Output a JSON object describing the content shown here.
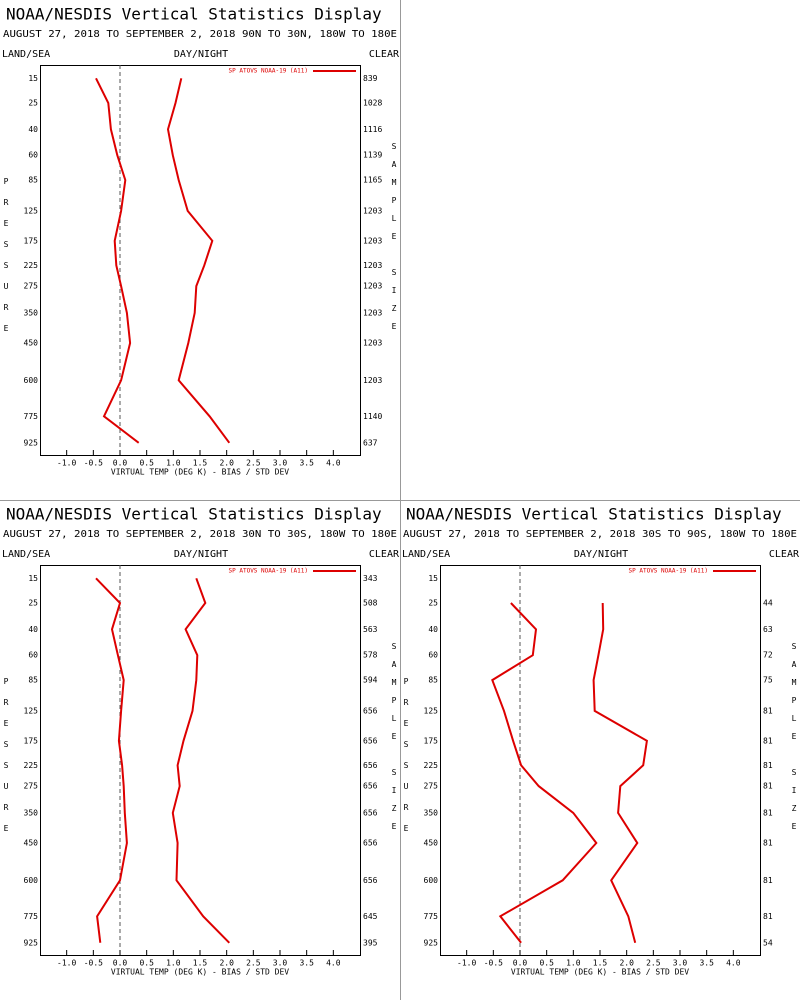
{
  "chart_data": [
    {
      "type": "line",
      "title": "NOAA/NESDIS Vertical Statistics Display",
      "subtitle": "AUGUST 27, 2018 TO SEPTEMBER 2, 2018  90N TO 30N, 180W TO 180E",
      "left_header": "LAND/SEA",
      "center_header": "DAY/NIGHT",
      "right_header": "CLEAR",
      "xlabel": "VIRTUAL TEMP (DEG K) - BIAS / STD DEV",
      "ylabel": "PRESSURE",
      "y2label": "SAMPLE SIZE",
      "xlim": [
        -1.5,
        4.5
      ],
      "xticks": [
        {
          "value": -1,
          "label": "-1.0"
        },
        -0.5,
        {
          "value": 0,
          "label": "0.0"
        },
        0.5,
        {
          "value": 1,
          "label": "1.0"
        },
        1.5,
        {
          "value": 2,
          "label": "2.0"
        },
        2.5,
        {
          "value": 3,
          "label": "3.0"
        },
        3.5,
        {
          "value": 4,
          "label": "4.0"
        }
      ],
      "ylim": [
        11,
        1000
      ],
      "yticks": [
        15,
        25,
        40,
        60,
        85,
        125,
        175,
        225,
        275,
        350,
        450,
        600,
        775,
        925
      ],
      "sample_size": [
        839,
        1028,
        1116,
        1139,
        1165,
        1203,
        1203,
        1203,
        1203,
        1203,
        1203,
        1203,
        1140,
        637
      ],
      "series": [
        {
          "name": "SP ATOVS NOAA-19 (A11)",
          "color": "#dd0000",
          "values": [
            -0.45,
            -0.22,
            -0.17,
            -0.05,
            0.1,
            0.02,
            -0.1,
            -0.07,
            0.02,
            0.13,
            0.19,
            0.02,
            -0.3,
            0.35
          ],
          "std_dev": [
            1.15,
            1.04,
            0.9,
            0.99,
            1.1,
            1.27,
            1.73,
            1.58,
            1.43,
            1.4,
            1.28,
            1.1,
            1.68,
            2.05
          ]
        }
      ]
    },
    {
      "type": "line",
      "title": "NOAA/NESDIS Vertical Statistics Display",
      "subtitle": "AUGUST 27, 2018 TO SEPTEMBER 2, 2018  30N TO 30S, 180W TO 180E",
      "left_header": "LAND/SEA",
      "center_header": "DAY/NIGHT",
      "right_header": "CLEAR",
      "xlabel": "VIRTUAL TEMP (DEG K) - BIAS / STD DEV",
      "ylabel": "PRESSURE",
      "y2label": "SAMPLE SIZE",
      "xlim": [
        -1.5,
        4.5
      ],
      "xticks": [
        {
          "value": -1,
          "label": "-1.0"
        },
        -0.5,
        {
          "value": 0,
          "label": "0.0"
        },
        0.5,
        {
          "value": 1,
          "label": "1.0"
        },
        1.5,
        {
          "value": 2,
          "label": "2.0"
        },
        2.5,
        {
          "value": 3,
          "label": "3.0"
        },
        3.5,
        {
          "value": 4,
          "label": "4.0"
        }
      ],
      "ylim": [
        11,
        1000
      ],
      "yticks": [
        15,
        25,
        40,
        60,
        85,
        125,
        175,
        225,
        275,
        350,
        450,
        600,
        775,
        925
      ],
      "sample_size": [
        343,
        508,
        563,
        578,
        594,
        656,
        656,
        656,
        656,
        656,
        656,
        656,
        645,
        395
      ],
      "series": [
        {
          "name": "SP ATOVS NOAA-19 (A11)",
          "color": "#dd0000",
          "values": [
            -0.45,
            0,
            -0.15,
            -0.04,
            0.07,
            0.02,
            -0.02,
            0.04,
            0.07,
            0.09,
            0.13,
            0,
            -0.43,
            -0.37
          ],
          "std_dev": [
            1.43,
            1.6,
            1.23,
            1.45,
            1.43,
            1.36,
            1.19,
            1.08,
            1.12,
            0.99,
            1.08,
            1.06,
            1.56,
            2.05
          ]
        }
      ]
    },
    {
      "type": "line",
      "title": "NOAA/NESDIS Vertical Statistics Display",
      "subtitle": "AUGUST 27, 2018 TO SEPTEMBER 2, 2018  30S TO 90S, 180W TO 180E",
      "left_header": "LAND/SEA",
      "center_header": "DAY/NIGHT",
      "right_header": "CLEAR",
      "xlabel": "VIRTUAL TEMP (DEG K) - BIAS / STD DEV",
      "ylabel": "PRESSURE",
      "y2label": "SAMPLE SIZE",
      "xlim": [
        -1.5,
        4.5
      ],
      "xticks": [
        {
          "value": -1,
          "label": "-1.0"
        },
        -0.5,
        {
          "value": 0,
          "label": "0.0"
        },
        0.5,
        {
          "value": 1,
          "label": "1.0"
        },
        1.5,
        {
          "value": 2,
          "label": "2.0"
        },
        2.5,
        {
          "value": 3,
          "label": "3.0"
        },
        3.5,
        {
          "value": 4,
          "label": "4.0"
        }
      ],
      "ylim": [
        11,
        1000
      ],
      "yticks": [
        15,
        25,
        40,
        60,
        85,
        125,
        175,
        225,
        275,
        350,
        450,
        600,
        775,
        925
      ],
      "sample_size": [
        null,
        44,
        63,
        72,
        75,
        81,
        81,
        81,
        81,
        81,
        81,
        81,
        81,
        54
      ],
      "series": [
        {
          "name": "SP ATOVS NOAA-19 (A11)",
          "color": "#dd0000",
          "values": [
            null,
            -0.17,
            0.3,
            0.24,
            -0.52,
            -0.3,
            -0.13,
            0.02,
            0.35,
            1.0,
            1.43,
            0.8,
            -0.37,
            0.02
          ],
          "std_dev": [
            null,
            1.55,
            1.56,
            1.47,
            1.38,
            1.4,
            2.38,
            2.31,
            1.88,
            1.84,
            2.2,
            1.71,
            2.03,
            2.16
          ]
        }
      ]
    }
  ]
}
